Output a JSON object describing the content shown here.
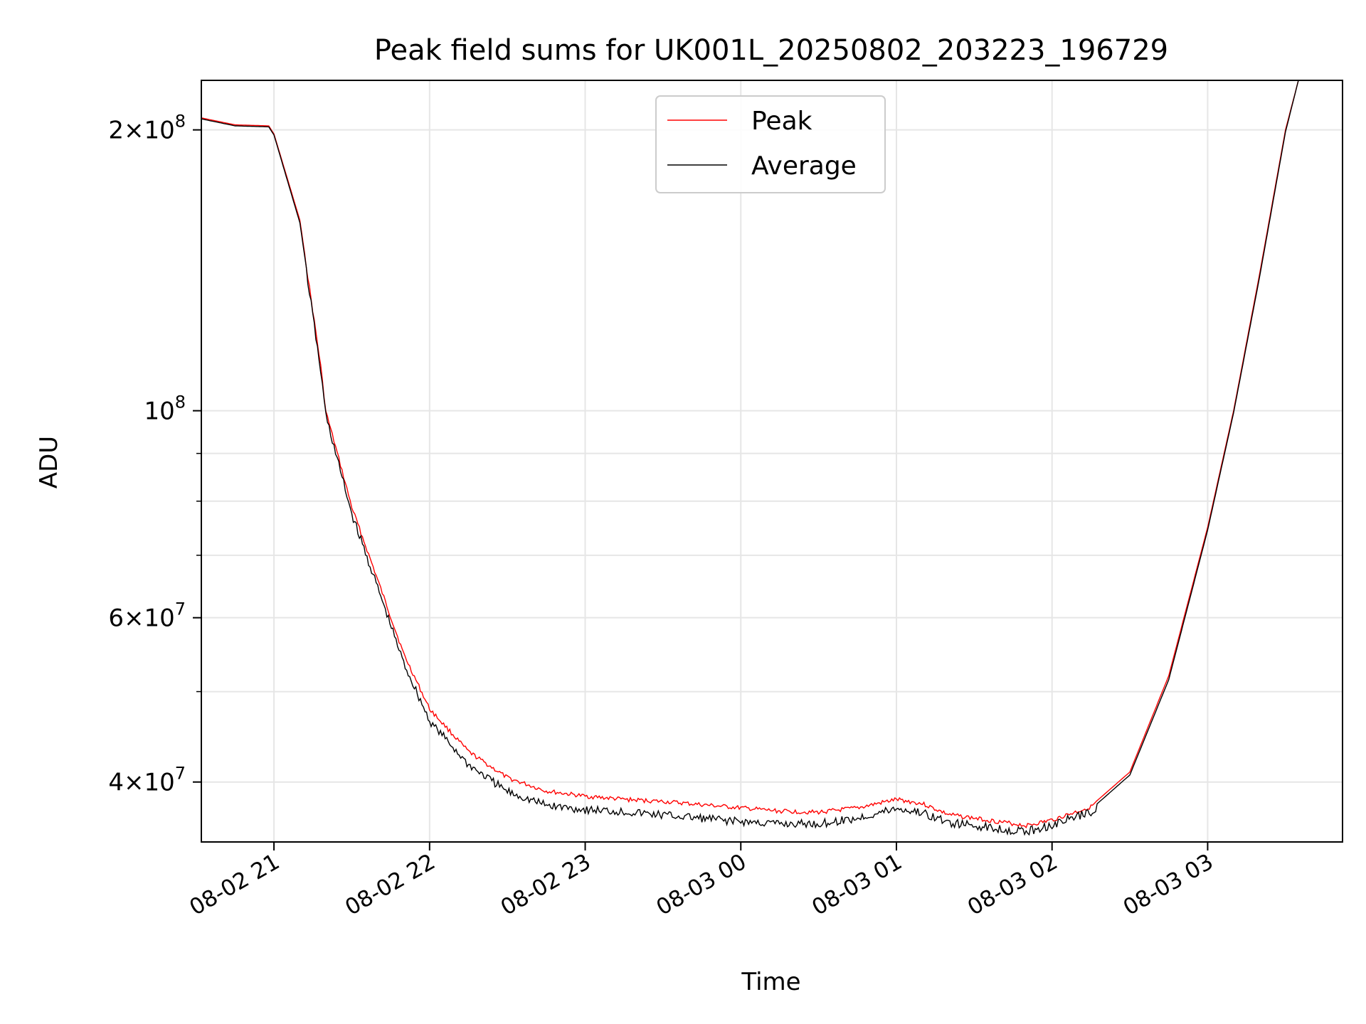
{
  "chart_data": {
    "type": "line",
    "title": "Peak field sums for UK001L_20250802_203223_196729",
    "xlabel": "Time",
    "ylabel": "ADU",
    "yscale": "log",
    "grid": true,
    "legend_position": "top-center",
    "xlim": [
      "2025-08-02 20:32",
      "2025-08-03 03:52"
    ],
    "ylim": [
      34500000,
      226000000
    ],
    "x_ticks": [
      {
        "value": "2025-08-02 21:00",
        "label": "08-02 21"
      },
      {
        "value": "2025-08-02 22:00",
        "label": "08-02 22"
      },
      {
        "value": "2025-08-02 23:00",
        "label": "08-02 23"
      },
      {
        "value": "2025-08-03 00:00",
        "label": "08-03 00"
      },
      {
        "value": "2025-08-03 01:00",
        "label": "08-03 01"
      },
      {
        "value": "2025-08-03 02:00",
        "label": "08-03 02"
      },
      {
        "value": "2025-08-03 03:00",
        "label": "08-03 03"
      }
    ],
    "y_ticks": [
      {
        "value": 200000000,
        "mantissa": "2",
        "exp": "8"
      },
      {
        "value": 100000000,
        "mantissa": "",
        "exp": "8"
      },
      {
        "value": 60000000,
        "mantissa": "6",
        "exp": "7"
      },
      {
        "value": 40000000,
        "mantissa": "4",
        "exp": "7"
      }
    ],
    "y_minor_ticks": [
      90000000,
      80000000,
      70000000,
      50000000
    ],
    "series": [
      {
        "name": "Peak",
        "color": "#ff0000",
        "x": [
          "2025-08-02 20:32",
          "2025-08-02 20:45",
          "2025-08-02 20:58",
          "2025-08-02 21:00",
          "2025-08-02 21:10",
          "2025-08-02 21:18",
          "2025-08-02 21:20",
          "2025-08-02 21:25",
          "2025-08-02 21:30",
          "2025-08-02 21:40",
          "2025-08-02 21:50",
          "2025-08-02 22:00",
          "2025-08-02 22:15",
          "2025-08-02 22:30",
          "2025-08-02 22:45",
          "2025-08-02 23:00",
          "2025-08-02 23:15",
          "2025-08-02 23:30",
          "2025-08-02 23:45",
          "2025-08-03 00:00",
          "2025-08-03 00:15",
          "2025-08-03 00:30",
          "2025-08-03 00:45",
          "2025-08-03 01:00",
          "2025-08-03 01:10",
          "2025-08-03 01:20",
          "2025-08-03 01:35",
          "2025-08-03 01:50",
          "2025-08-03 02:00",
          "2025-08-03 02:15",
          "2025-08-03 02:30",
          "2025-08-03 02:45",
          "2025-08-03 03:00",
          "2025-08-03 03:10",
          "2025-08-03 03:20",
          "2025-08-03 03:30",
          "2025-08-03 03:35",
          "2025-08-03 03:52"
        ],
        "values": [
          206000000,
          202500000,
          202000000,
          198000000,
          160000000,
          112000000,
          100000000,
          89000000,
          79000000,
          66000000,
          55000000,
          48000000,
          43200000,
          40500000,
          39200000,
          38700000,
          38400000,
          38200000,
          37900000,
          37600000,
          37300000,
          37200000,
          37600000,
          38400000,
          38000000,
          37000000,
          36500000,
          36000000,
          36500000,
          37700000,
          41000000,
          52000000,
          75000000,
          100000000,
          140000000,
          200000000,
          226000000,
          226000000
        ]
      },
      {
        "name": "Average",
        "color": "#000000",
        "x": [
          "2025-08-02 20:32",
          "2025-08-02 20:45",
          "2025-08-02 20:58",
          "2025-08-02 21:00",
          "2025-08-02 21:10",
          "2025-08-02 21:18",
          "2025-08-02 21:20",
          "2025-08-02 21:25",
          "2025-08-02 21:30",
          "2025-08-02 21:40",
          "2025-08-02 21:50",
          "2025-08-02 22:00",
          "2025-08-02 22:15",
          "2025-08-02 22:30",
          "2025-08-02 22:45",
          "2025-08-02 23:00",
          "2025-08-02 23:15",
          "2025-08-02 23:30",
          "2025-08-02 23:45",
          "2025-08-03 00:00",
          "2025-08-03 00:15",
          "2025-08-03 00:30",
          "2025-08-03 00:45",
          "2025-08-03 01:00",
          "2025-08-03 01:10",
          "2025-08-03 01:20",
          "2025-08-03 01:35",
          "2025-08-03 01:50",
          "2025-08-03 02:00",
          "2025-08-03 02:15",
          "2025-08-03 02:30",
          "2025-08-03 02:45",
          "2025-08-03 03:00",
          "2025-08-03 03:10",
          "2025-08-03 03:20",
          "2025-08-03 03:30",
          "2025-08-03 03:35",
          "2025-08-03 03:52"
        ],
        "values": [
          205500000,
          202000000,
          201500000,
          197500000,
          159000000,
          111000000,
          99500000,
          88000000,
          78000000,
          65000000,
          54000000,
          46800000,
          42000000,
          39300000,
          38000000,
          37600000,
          37400000,
          37100000,
          36800000,
          36500000,
          36300000,
          36300000,
          36800000,
          37700000,
          37300000,
          36400000,
          36000000,
          35600000,
          36200000,
          37400000,
          40700000,
          51500000,
          74500000,
          99500000,
          139000000,
          199000000,
          226000000,
          226000000
        ]
      }
    ]
  }
}
